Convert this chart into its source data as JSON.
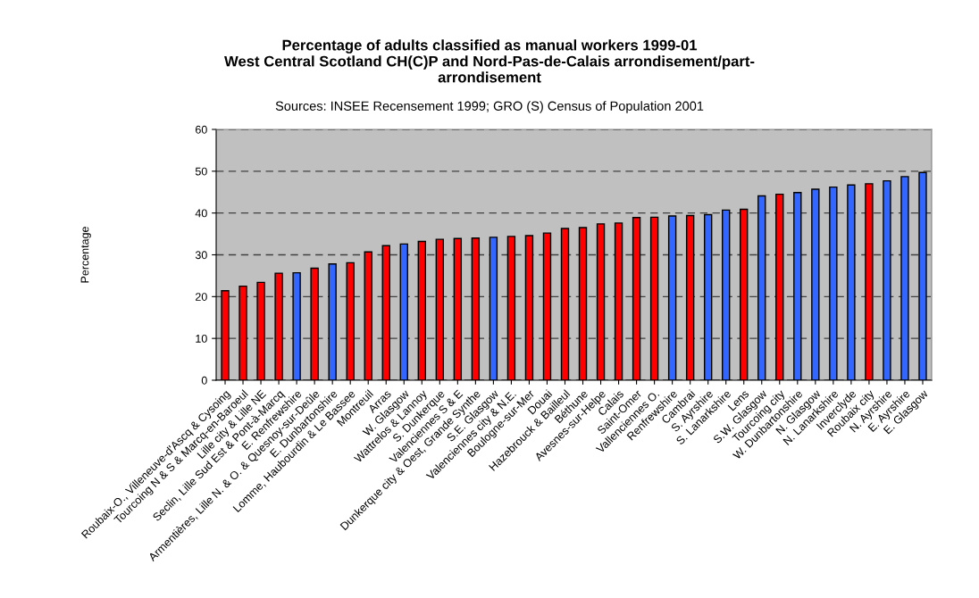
{
  "chart_data": {
    "type": "bar",
    "title": "Percentage of adults classified as manual workers 1999-01\nWest Central Scotland CH(C)P and Nord-Pas-de-Calais arrondisement/part-\narrondisement",
    "subtitle": "Sources: INSEE Recensement 1999; GRO (S) Census of Population 2001",
    "ylabel": "Percentage",
    "categories": [
      "Roubaix-O., Villeneuve-d'Ascq & Cysoing",
      "Tourcoing N & S & Marcq-en-Baroeul",
      "Lille city & Lille NE",
      "Seclin, Lille Sud Est & Pont-à-Marcq",
      "E. Renfrewshire",
      "Armentières, Lille N. & O. & Quesnoy-sur-Deûle",
      "E. Dunbartonshire",
      "Lomme, Haubourdin & Le Bassee",
      "Montreuil",
      "Arras",
      "W. Glasgow",
      "Wattrelos & Lannoy",
      "S. Dunkerque",
      "Valenciennes S & E",
      "Dunkerque city & Oest, Grande Synthe",
      "S.E. Glasgow",
      "Valenciennes city & N.E.",
      "Boulogne-sur-Mer",
      "Douai",
      "Hazebrouck & Bailleul",
      "Béthune",
      "Avesnes-sur-Helpe",
      "Calais",
      "Saint-Omer",
      "Vallenciennes O.",
      "Renfrewshire",
      "Cambrai",
      "S. Ayrshire",
      "S. Lanarkshire",
      "Lens",
      "S.W. Glasgow",
      "Tourcoing city",
      "W. Dunbartonshire",
      "N. Glasgow",
      "N. Lanarkshire",
      "Inverclyde",
      "Roubaix city",
      "N. Ayrshire",
      "E. Ayrshire",
      "E. Glasgow"
    ],
    "values": [
      21.4,
      22.5,
      23.4,
      25.6,
      25.7,
      26.8,
      27.8,
      28.1,
      30.7,
      32.2,
      32.6,
      33.2,
      33.7,
      33.9,
      34.0,
      34.2,
      34.4,
      34.6,
      35.2,
      36.3,
      36.5,
      37.4,
      37.6,
      38.9,
      39.0,
      39.3,
      39.4,
      39.6,
      40.7,
      40.9,
      44.1,
      44.5,
      44.9,
      45.7,
      46.2,
      46.7,
      47.0,
      47.7,
      48.7,
      49.7
    ],
    "colors": [
      "#ff0000",
      "#ff0000",
      "#ff0000",
      "#ff0000",
      "#3366ff",
      "#ff0000",
      "#3366ff",
      "#ff0000",
      "#ff0000",
      "#ff0000",
      "#3366ff",
      "#ff0000",
      "#ff0000",
      "#ff0000",
      "#ff0000",
      "#3366ff",
      "#ff0000",
      "#ff0000",
      "#ff0000",
      "#ff0000",
      "#ff0000",
      "#ff0000",
      "#ff0000",
      "#ff0000",
      "#ff0000",
      "#3366ff",
      "#ff0000",
      "#3366ff",
      "#3366ff",
      "#ff0000",
      "#3366ff",
      "#ff0000",
      "#3366ff",
      "#3366ff",
      "#3366ff",
      "#3366ff",
      "#ff0000",
      "#3366ff",
      "#3366ff",
      "#3366ff"
    ],
    "ylim": [
      0,
      60
    ],
    "yticks": [
      0,
      10,
      20,
      30,
      40,
      50,
      60
    ],
    "grid": "y",
    "legend": false
  }
}
